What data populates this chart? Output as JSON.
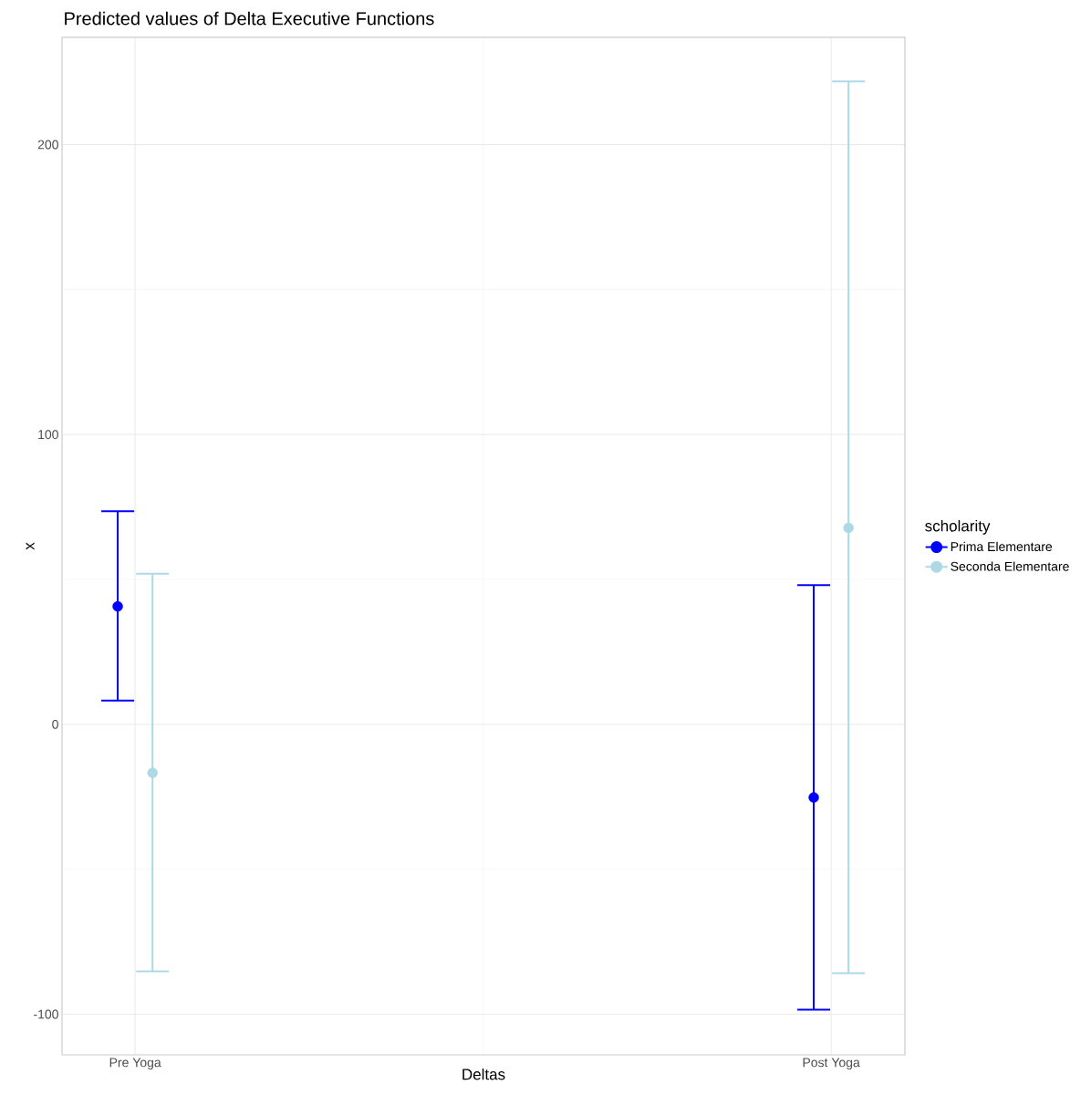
{
  "chart_data": {
    "type": "scatter",
    "title": "Predicted values of Delta Executive Functions",
    "xlabel": "Deltas",
    "ylabel": "x",
    "legend_title": "scholarity",
    "categories": [
      "Pre Yoga",
      "Post Yoga"
    ],
    "series": [
      {
        "name": "Prima Elementare",
        "color": "#0000ff",
        "values": [
          40.7,
          -25.2
        ],
        "errors": [
          [
            8.2,
            73.5
          ],
          [
            -98.4,
            48
          ]
        ]
      },
      {
        "name": "Seconda Elementare",
        "color": "#add8e6",
        "values": [
          -16.7,
          67.8
        ],
        "errors": [
          [
            -85.2,
            52
          ],
          [
            -85.8,
            221.8
          ]
        ]
      }
    ],
    "ylim": [
      -114,
      237
    ],
    "yticks": [
      -100,
      0,
      100,
      200
    ],
    "grid": true,
    "legend": "right",
    "marker": "circle"
  }
}
